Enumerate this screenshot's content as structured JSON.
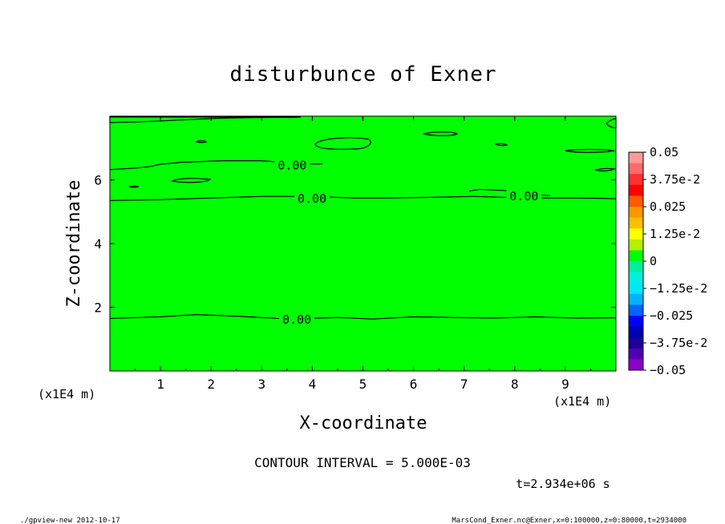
{
  "chart_data": {
    "type": "heatmap",
    "title": "disturbunce of Exner",
    "xlabel": "X-coordinate",
    "ylabel": "Z-coordinate",
    "x_unit_label": "(x1E4 m)",
    "y_unit_label": "(x1E4 m)",
    "xlim": [
      0,
      100000
    ],
    "ylim": [
      0,
      80000
    ],
    "x_ticks": [
      1,
      2,
      3,
      4,
      5,
      6,
      7,
      8,
      9
    ],
    "y_ticks": [
      2,
      4,
      6
    ],
    "contour_interval_text": "CONTOUR INTERVAL = 5.000E-03",
    "time_text": "t=2.934e+06 s",
    "field_fill_color": "#00ff00",
    "contour_labels": [
      "0.00",
      "0.00",
      "0.00",
      "0.00"
    ],
    "contours": [
      {
        "label": "0.00",
        "points": [
          [
            0,
            16500
          ],
          [
            10000,
            17000
          ],
          [
            17000,
            17700
          ],
          [
            25000,
            17200
          ],
          [
            33000,
            16500
          ],
          [
            38000,
            16400
          ],
          [
            45000,
            16800
          ],
          [
            52000,
            16300
          ],
          [
            60000,
            17000
          ],
          [
            68000,
            16800
          ],
          [
            76000,
            16600
          ],
          [
            84000,
            17000
          ],
          [
            92000,
            16600
          ],
          [
            100000,
            16700
          ]
        ]
      },
      {
        "label": "0.00",
        "points": [
          [
            0,
            53500
          ],
          [
            10000,
            53800
          ],
          [
            20000,
            54300
          ],
          [
            30000,
            54800
          ],
          [
            40000,
            54800
          ],
          [
            48000,
            54300
          ],
          [
            55000,
            54300
          ],
          [
            63000,
            54500
          ],
          [
            72000,
            54800
          ],
          [
            82000,
            54300
          ],
          [
            92000,
            54300
          ],
          [
            100000,
            54100
          ]
        ]
      },
      {
        "label": "0.00",
        "points": [
          [
            0,
            63200
          ],
          [
            5000,
            63700
          ],
          [
            8000,
            64200
          ],
          [
            10000,
            64900
          ],
          [
            14000,
            65500
          ],
          [
            22000,
            66000
          ],
          [
            30000,
            66000
          ],
          [
            36000,
            65300
          ],
          [
            40000,
            65000
          ],
          [
            42000,
            65000
          ]
        ]
      },
      {
        "label": "0.00",
        "points": [
          [
            71000,
            56500
          ],
          [
            73000,
            57000
          ],
          [
            76000,
            56800
          ],
          [
            80000,
            56500
          ],
          [
            85000,
            55300
          ],
          [
            87000,
            55000
          ]
        ]
      }
    ],
    "colorbar": {
      "labels": [
        "0.05",
        "3.75e-2",
        "0.025",
        "1.25e-2",
        "0",
        "−1.25e-2",
        "−0.025",
        "−3.75e-2",
        "−0.05"
      ],
      "colors": [
        "#ff9a9a",
        "#ff6a6a",
        "#ff3030",
        "#ff0000",
        "#ff5a00",
        "#ff9600",
        "#ffbe00",
        "#ffff00",
        "#b4f000",
        "#00ff00",
        "#00f0a0",
        "#00f0dc",
        "#00e6ff",
        "#00b4ff",
        "#0064ff",
        "#0000ff",
        "#0000b4",
        "#1e0096",
        "#5000b4",
        "#8c00c8"
      ]
    }
  },
  "footer": {
    "left": "./gpview-new  2012-10-17",
    "right": "MarsCond_Exner.nc@Exner,x=0:100000,z=0:80000,t=2934000"
  }
}
